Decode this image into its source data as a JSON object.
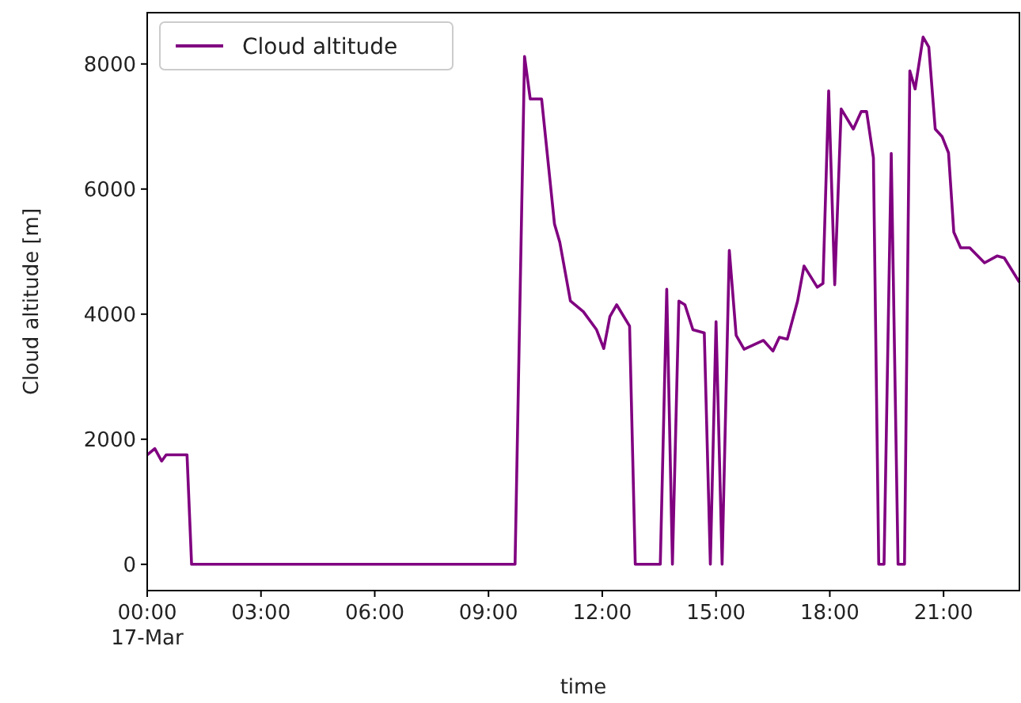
{
  "chart_data": {
    "type": "line",
    "xlabel": "time",
    "ylabel": "Cloud altitude [m]",
    "legend": "top left",
    "grid": false,
    "marker": "none",
    "line_style": "solid",
    "xlim": [
      0,
      23
    ],
    "ylim": [
      -420,
      8820
    ],
    "xticks": [
      {
        "value": 0,
        "label": "00:00\n17-Mar"
      },
      {
        "value": 3,
        "label": "03:00"
      },
      {
        "value": 6,
        "label": "06:00"
      },
      {
        "value": 9,
        "label": "09:00"
      },
      {
        "value": 12,
        "label": "12:00"
      },
      {
        "value": 15,
        "label": "15:00"
      },
      {
        "value": 18,
        "label": "18:00"
      },
      {
        "value": 21,
        "label": "21:00"
      }
    ],
    "yticks": [
      0,
      2000,
      4000,
      6000,
      8000
    ],
    "series": [
      {
        "name": "Cloud altitude",
        "color": "#800080",
        "x": [
          0,
          0.2,
          0.38,
          0.5,
          1.05,
          1.17,
          9.7,
          9.95,
          10.1,
          10.4,
          10.74,
          10.88,
          11.16,
          11.5,
          11.85,
          12.04,
          12.2,
          12.38,
          12.72,
          12.87,
          13.53,
          13.7,
          13.85,
          14.02,
          14.18,
          14.39,
          14.69,
          14.85,
          15.0,
          15.16,
          15.35,
          15.53,
          15.74,
          16.25,
          16.5,
          16.67,
          16.88,
          17.15,
          17.32,
          17.67,
          17.82,
          17.97,
          18.13,
          18.3,
          18.62,
          18.83,
          18.97,
          19.15,
          19.29,
          19.43,
          19.62,
          19.8,
          19.97,
          20.11,
          20.25,
          20.46,
          20.61,
          20.78,
          20.96,
          21.13,
          21.27,
          21.45,
          21.69,
          22.08,
          22.41,
          22.6,
          23.0
        ],
        "values": [
          1750,
          1850,
          1650,
          1750,
          1750,
          0,
          0,
          8120,
          7440,
          7440,
          5440,
          5150,
          4210,
          4040,
          3750,
          3450,
          3960,
          4150,
          3810,
          0,
          0,
          4400,
          0,
          4210,
          4150,
          3750,
          3700,
          0,
          3880,
          0,
          5020,
          3660,
          3440,
          3580,
          3410,
          3630,
          3600,
          4210,
          4770,
          4430,
          4490,
          7570,
          4470,
          7280,
          6960,
          7240,
          7240,
          6500,
          0,
          0,
          6570,
          0,
          0,
          7890,
          7600,
          8430,
          8270,
          6960,
          6840,
          6580,
          5310,
          5060,
          5060,
          4820,
          4930,
          4900,
          4510
        ]
      }
    ]
  }
}
